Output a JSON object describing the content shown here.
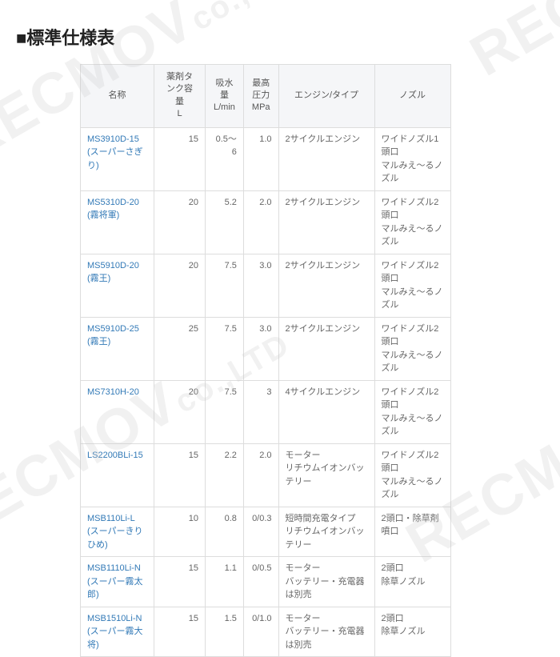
{
  "title": "■標準仕様表",
  "columns": [
    "名称",
    "薬剤タンク容量\nL",
    "吸水量\nL/min",
    "最高圧力\nMPa",
    "エンジン/タイプ",
    "ノズル"
  ],
  "col_align": [
    "left",
    "right",
    "right",
    "right",
    "left",
    "left"
  ],
  "rows": [
    [
      "MS3910D-15\n(スーパーさぎり)",
      "15",
      "0.5～6",
      "1.0",
      "2サイクルエンジン",
      "ワイドノズル1頭口\nマルみえ～るノズル"
    ],
    [
      "MS5310D-20\n(霧将軍)",
      "20",
      "5.2",
      "2.0",
      "2サイクルエンジン",
      "ワイドノズル2頭口\nマルみえ～るノズル"
    ],
    [
      "MS5910D-20\n(霧王)",
      "20",
      "7.5",
      "3.0",
      "2サイクルエンジン",
      "ワイドノズル2頭口\nマルみえ～るノズル"
    ],
    [
      "MS5910D-25\n(霧王)",
      "25",
      "7.5",
      "3.0",
      "2サイクルエンジン",
      "ワイドノズル2頭口\nマルみえ～るノズル"
    ],
    [
      "MS7310H-20",
      "20",
      "7.5",
      "3",
      "4サイクルエンジン",
      "ワイドノズル2頭口\nマルみえ～るノズル"
    ],
    [
      "LS2200BLi-15",
      "15",
      "2.2",
      "2.0",
      "モーター\nリチウムイオンバッテリー",
      "ワイドノズル2頭口\nマルみえ～るノズル"
    ],
    [
      "MSB110Li-L\n(スーパーきりひめ)",
      "10",
      "0.8",
      "0/0.3",
      "短時間充電タイプ\nリチウムイオンバッテリー",
      "2頭口・除草剤噴口"
    ],
    [
      "MSB1110Li-N\n(スーパー霧太郎)",
      "15",
      "1.1",
      "0/0.5",
      "モーター\nバッテリー・充電器は別売",
      "2頭口\n除草ノズル"
    ],
    [
      "MSB1510Li-N\n(スーパー霧大将)",
      "15",
      "1.5",
      "0/1.0",
      "モーター\nバッテリー・充電器は別売",
      "2頭口\n除草ノズル"
    ]
  ],
  "table_style": {
    "border_color": "#dddddd",
    "header_bg": "#f5f6f8",
    "text_color": "#666666",
    "link_color": "#337ab7",
    "font_size": 11
  }
}
